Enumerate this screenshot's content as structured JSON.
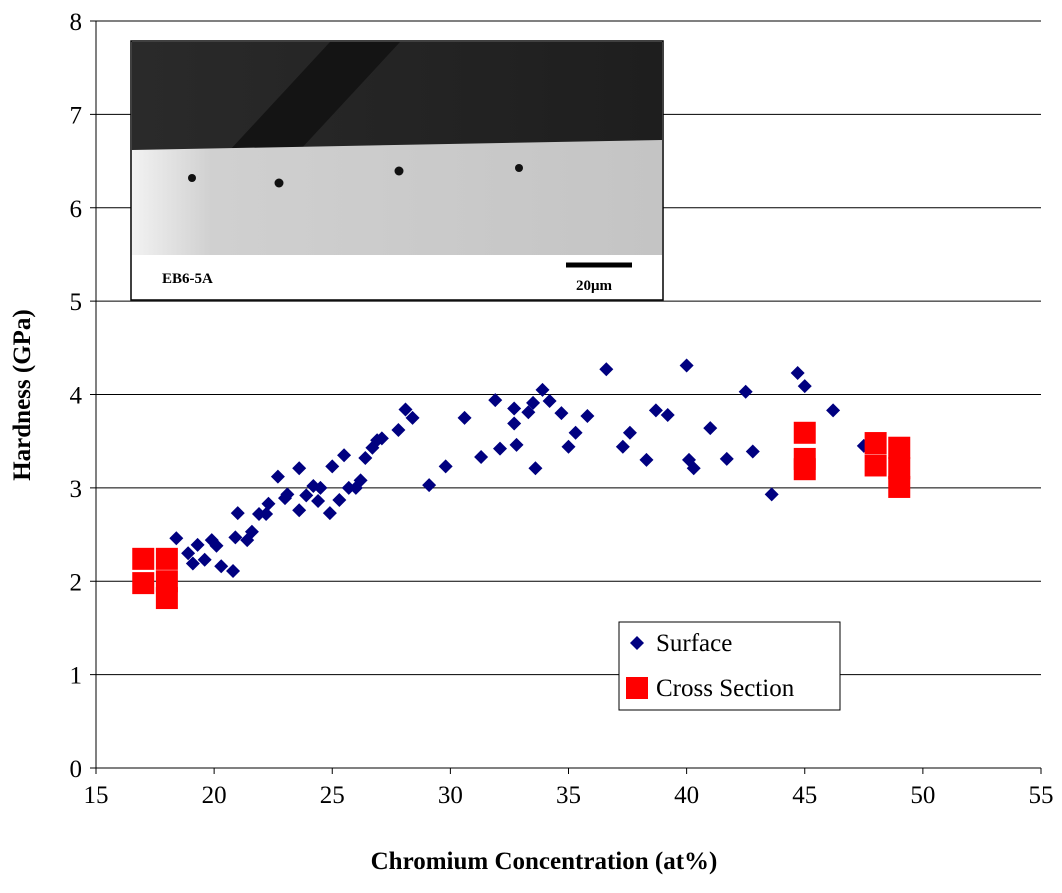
{
  "chart_data": {
    "type": "scatter",
    "xlabel": "Chromium Concentration (at%)",
    "ylabel": "Hardness (GPa)",
    "annotations": [
      "EB6-5A",
      "20μm"
    ],
    "xlim": [
      15,
      55
    ],
    "xticks": [
      15,
      20,
      25,
      30,
      35,
      40,
      45,
      50,
      55
    ],
    "ylim": [
      0,
      8
    ],
    "yticks": [
      0,
      1,
      2,
      3,
      4,
      5,
      6,
      7,
      8
    ],
    "grid": true,
    "series": [
      {
        "name": "Surface",
        "color": "#000080",
        "marker": "diamond",
        "x": [
          18.4,
          18.9,
          19.1,
          19.3,
          19.6,
          19.9,
          20.1,
          20.3,
          20.8,
          21.0,
          20.9,
          21.4,
          21.6,
          21.9,
          22.2,
          22.3,
          22.7,
          23.0,
          23.1,
          23.6,
          23.6,
          23.9,
          24.2,
          24.4,
          24.5,
          24.9,
          25.0,
          25.3,
          25.5,
          25.7,
          26.0,
          26.2,
          26.4,
          26.7,
          26.9,
          27.1,
          27.8,
          28.1,
          28.4,
          29.1,
          29.8,
          30.6,
          31.3,
          31.9,
          32.1,
          32.7,
          32.7,
          32.8,
          33.3,
          33.5,
          33.6,
          33.9,
          34.2,
          34.7,
          35.0,
          35.3,
          35.8,
          36.6,
          37.3,
          37.6,
          38.3,
          38.7,
          39.2,
          40.0,
          40.1,
          40.3,
          41.0,
          41.7,
          42.5,
          42.8,
          43.6,
          44.7,
          45.0,
          46.2,
          47.5
        ],
        "values": [
          2.46,
          2.3,
          2.19,
          2.39,
          2.23,
          2.44,
          2.38,
          2.16,
          2.11,
          2.73,
          2.47,
          2.44,
          2.53,
          2.72,
          2.72,
          2.83,
          3.12,
          2.89,
          2.93,
          3.21,
          2.76,
          2.92,
          3.02,
          2.86,
          3.0,
          2.73,
          3.23,
          2.87,
          3.35,
          3.0,
          3.0,
          3.08,
          3.32,
          3.43,
          3.51,
          3.53,
          3.62,
          3.84,
          3.75,
          3.03,
          3.23,
          3.75,
          3.33,
          3.94,
          3.42,
          3.85,
          3.69,
          3.46,
          3.81,
          3.91,
          3.21,
          4.05,
          3.93,
          3.8,
          3.44,
          3.59,
          3.77,
          4.27,
          3.44,
          3.59,
          3.3,
          3.83,
          3.78,
          4.31,
          3.3,
          3.21,
          3.64,
          3.31,
          4.03,
          3.39,
          2.93,
          4.23,
          4.09,
          3.83,
          3.45
        ]
      },
      {
        "name": "Cross Section",
        "color": "#ff0000",
        "marker": "square",
        "x": [
          17,
          17,
          18,
          18,
          18,
          45,
          45,
          45,
          48,
          48,
          49,
          49,
          49
        ],
        "values": [
          2.24,
          1.98,
          2.24,
          2.0,
          1.82,
          3.59,
          3.31,
          3.2,
          3.48,
          3.24,
          3.43,
          3.21,
          3.01
        ]
      }
    ]
  }
}
